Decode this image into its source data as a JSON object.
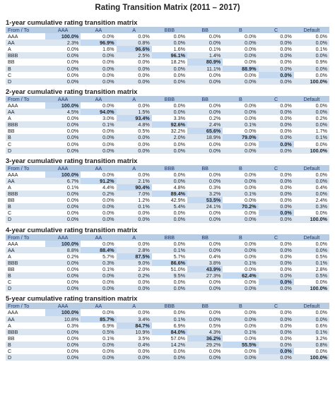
{
  "title": "Rating Transition Matrix (2011 – 2017)",
  "columns": [
    "From / To",
    "AAA",
    "AA",
    "A",
    "BBB",
    "BB",
    "B",
    "C",
    "Default"
  ],
  "row_labels": [
    "AAA",
    "AA",
    "A",
    "BBB",
    "BB",
    "B",
    "C",
    "D"
  ],
  "sections": [
    {
      "title": "1-year cumulative rating transition matrix",
      "rows": [
        [
          "100.0%",
          "0.0%",
          "0.0%",
          "0.0%",
          "0.0%",
          "0.0%",
          "0.0%",
          "0.0%"
        ],
        [
          "2.3%",
          "96.9%",
          "0.8%",
          "0.0%",
          "0.0%",
          "0.0%",
          "0.0%",
          "0.0%"
        ],
        [
          "0.0%",
          "1.6%",
          "96.6%",
          "1.6%",
          "0.1%",
          "0.0%",
          "0.0%",
          "0.1%"
        ],
        [
          "0.0%",
          "0.0%",
          "2.5%",
          "96.1%",
          "1.4%",
          "0.0%",
          "0.0%",
          "0.0%"
        ],
        [
          "0.0%",
          "0.0%",
          "0.0%",
          "18.2%",
          "80.9%",
          "0.0%",
          "0.0%",
          "0.9%"
        ],
        [
          "0.0%",
          "0.0%",
          "0.0%",
          "0.0%",
          "11.1%",
          "88.9%",
          "0.0%",
          "0.0%"
        ],
        [
          "0.0%",
          "0.0%",
          "0.0%",
          "0.0%",
          "0.0%",
          "0.0%",
          "0.0%",
          "0.0%"
        ],
        [
          "0.0%",
          "0.0%",
          "0.0%",
          "0.0%",
          "0.0%",
          "0.0%",
          "0.0%",
          "100.0%"
        ]
      ]
    },
    {
      "title": "2-year cumulative rating transition matrix",
      "rows": [
        [
          "100.0%",
          "0.0%",
          "0.0%",
          "0.0%",
          "0.0%",
          "0.0%",
          "0.0%",
          "0.0%"
        ],
        [
          "4.5%",
          "94.0%",
          "1.5%",
          "0.0%",
          "0.0%",
          "0.0%",
          "0.0%",
          "0.0%"
        ],
        [
          "0.0%",
          "3.0%",
          "93.4%",
          "3.3%",
          "0.2%",
          "0.0%",
          "0.0%",
          "0.2%"
        ],
        [
          "0.0%",
          "0.1%",
          "4.8%",
          "92.6%",
          "2.4%",
          "0.1%",
          "0.0%",
          "0.0%"
        ],
        [
          "0.0%",
          "0.0%",
          "0.5%",
          "32.2%",
          "65.6%",
          "0.0%",
          "0.0%",
          "1.7%"
        ],
        [
          "0.0%",
          "0.0%",
          "0.0%",
          "2.0%",
          "18.9%",
          "79.0%",
          "0.0%",
          "0.1%"
        ],
        [
          "0.0%",
          "0.0%",
          "0.0%",
          "0.0%",
          "0.0%",
          "0.0%",
          "0.0%",
          "0.0%"
        ],
        [
          "0.0%",
          "0.0%",
          "0.0%",
          "0.0%",
          "0.0%",
          "0.0%",
          "0.0%",
          "100.0%"
        ]
      ]
    },
    {
      "title": "3-year cumulative rating transition matrix",
      "rows": [
        [
          "100.0%",
          "0.0%",
          "0.0%",
          "0.0%",
          "0.0%",
          "0.0%",
          "0.0%",
          "0.0%"
        ],
        [
          "6.7%",
          "91.2%",
          "2.1%",
          "0.0%",
          "0.0%",
          "0.0%",
          "0.0%",
          "0.0%"
        ],
        [
          "0.1%",
          "4.4%",
          "90.4%",
          "4.8%",
          "0.3%",
          "0.0%",
          "0.0%",
          "0.4%"
        ],
        [
          "0.0%",
          "0.2%",
          "7.0%",
          "89.4%",
          "3.2%",
          "0.1%",
          "0.0%",
          "0.0%"
        ],
        [
          "0.0%",
          "0.0%",
          "1.2%",
          "42.9%",
          "53.5%",
          "0.0%",
          "0.0%",
          "2.4%"
        ],
        [
          "0.0%",
          "0.0%",
          "0.1%",
          "5.4%",
          "24.1%",
          "70.2%",
          "0.0%",
          "0.3%"
        ],
        [
          "0.0%",
          "0.0%",
          "0.0%",
          "0.0%",
          "0.0%",
          "0.0%",
          "0.0%",
          "0.0%"
        ],
        [
          "0.0%",
          "0.0%",
          "0.0%",
          "0.0%",
          "0.0%",
          "0.0%",
          "0.0%",
          "100.0%"
        ]
      ]
    },
    {
      "title": "4-year cumulative rating transition matrix",
      "rows": [
        [
          "100.0%",
          "0.0%",
          "0.0%",
          "0.0%",
          "0.0%",
          "0.0%",
          "0.0%",
          "0.0%"
        ],
        [
          "8.8%",
          "88.4%",
          "2.8%",
          "0.1%",
          "0.0%",
          "0.0%",
          "0.0%",
          "0.0%"
        ],
        [
          "0.2%",
          "5.7%",
          "87.5%",
          "5.7%",
          "0.4%",
          "0.0%",
          "0.0%",
          "0.5%"
        ],
        [
          "0.0%",
          "0.3%",
          "9.0%",
          "86.6%",
          "3.8%",
          "0.1%",
          "0.0%",
          "0.1%"
        ],
        [
          "0.0%",
          "0.1%",
          "2.0%",
          "51.0%",
          "43.9%",
          "0.0%",
          "0.0%",
          "2.8%"
        ],
        [
          "0.0%",
          "0.0%",
          "0.2%",
          "9.5%",
          "27.3%",
          "62.4%",
          "0.0%",
          "0.5%"
        ],
        [
          "0.0%",
          "0.0%",
          "0.0%",
          "0.0%",
          "0.0%",
          "0.0%",
          "0.0%",
          "0.0%"
        ],
        [
          "0.0%",
          "0.0%",
          "0.0%",
          "0.0%",
          "0.0%",
          "0.0%",
          "0.0%",
          "100.0%"
        ]
      ]
    },
    {
      "title": "5-year cumulative rating transition matrix",
      "rows": [
        [
          "100.0%",
          "0.0%",
          "0.0%",
          "0.0%",
          "0.0%",
          "0.0%",
          "0.0%",
          "0.0%"
        ],
        [
          "10.8%",
          "85.7%",
          "3.4%",
          "0.1%",
          "0.0%",
          "0.0%",
          "0.0%",
          "0.0%"
        ],
        [
          "0.3%",
          "6.9%",
          "84.7%",
          "6.9%",
          "0.5%",
          "0.0%",
          "0.0%",
          "0.6%"
        ],
        [
          "0.0%",
          "0.5%",
          "10.9%",
          "84.0%",
          "4.3%",
          "0.1%",
          "0.0%",
          "0.1%"
        ],
        [
          "0.0%",
          "0.1%",
          "3.5%",
          "57.0%",
          "36.2%",
          "0.0%",
          "0.0%",
          "3.2%"
        ],
        [
          "0.0%",
          "0.0%",
          "0.4%",
          "14.2%",
          "29.2%",
          "55.5%",
          "0.0%",
          "0.8%"
        ],
        [
          "0.0%",
          "0.0%",
          "0.0%",
          "0.0%",
          "0.0%",
          "0.0%",
          "0.0%",
          "0.0%"
        ],
        [
          "0.0%",
          "0.0%",
          "0.0%",
          "0.0%",
          "0.0%",
          "0.0%",
          "0.0%",
          "100.0%"
        ]
      ]
    }
  ]
}
